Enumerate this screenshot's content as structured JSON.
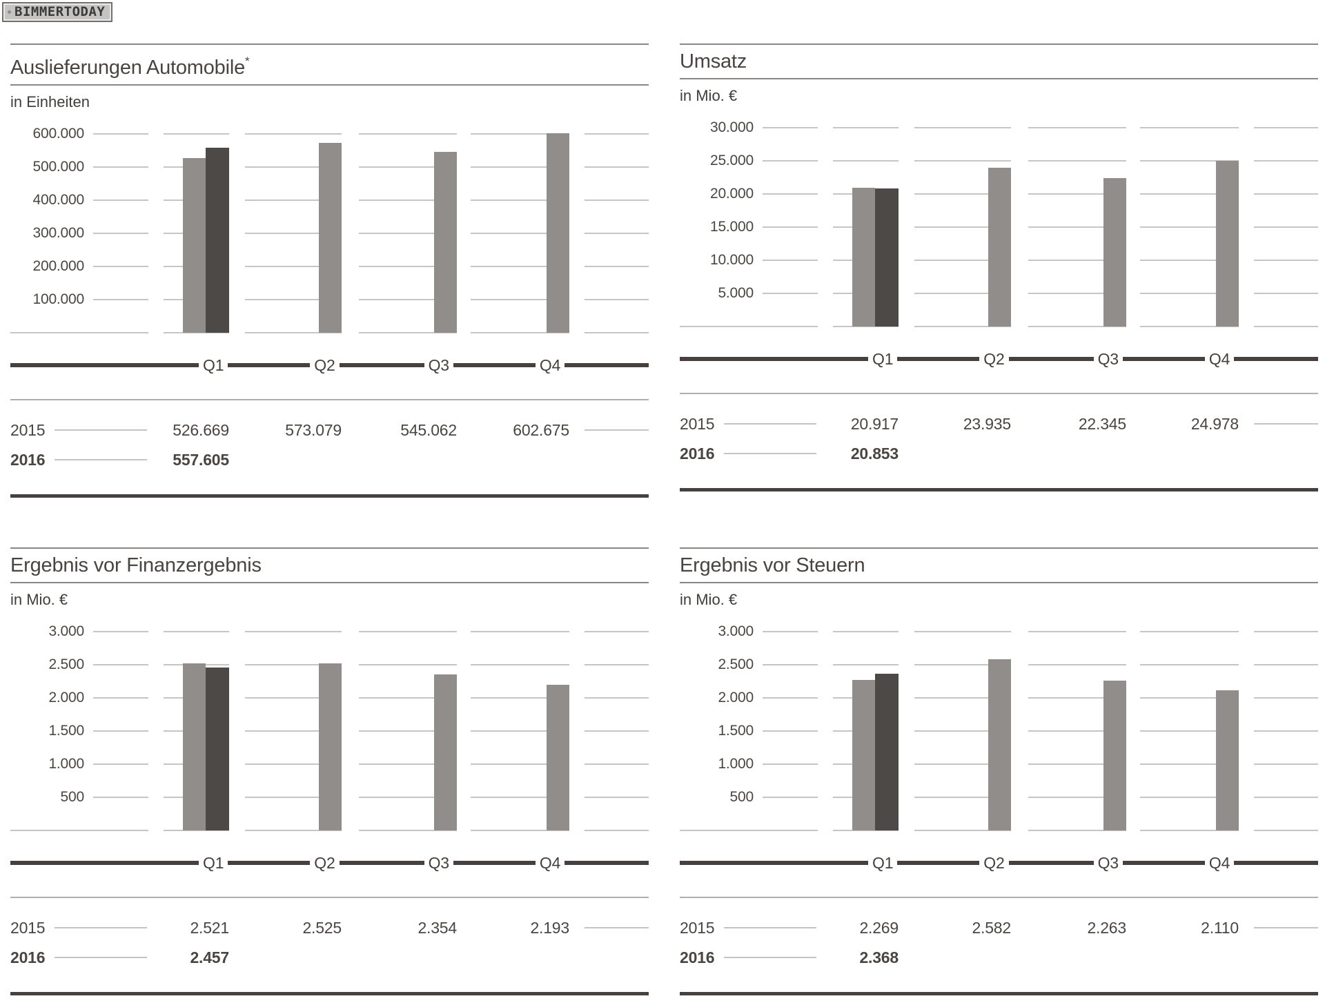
{
  "logo": {
    "text": "BIMMERTODAY"
  },
  "colors": {
    "bar_2015": "#908d8a",
    "bar_2016": "#4d4946",
    "gridline": "#c7c5c3",
    "title_rule": "#8a8683",
    "separator": "#b1aeab",
    "axis_line": "#46413e",
    "table_line": "#c6c4c2",
    "text": "#4a4541"
  },
  "chart_data": [
    {
      "type": "bar",
      "title": "Auslieferungen Automobile",
      "title_note": "*",
      "unit_label": "in Einheiten",
      "categories": [
        "Q1",
        "Q2",
        "Q3",
        "Q4"
      ],
      "ylim": [
        0,
        600000
      ],
      "y_tick_labels": [
        "600.000",
        "500.000",
        "400.000",
        "300.000",
        "200.000",
        "100.000"
      ],
      "grid": true,
      "series": [
        {
          "name": "2015",
          "color": "#908d8a",
          "values": [
            526669,
            573079,
            545062,
            602675
          ],
          "value_labels": [
            "526.669",
            "573.079",
            "545.062",
            "602.675"
          ]
        },
        {
          "name": "2016",
          "color": "#4d4946",
          "values": [
            557605
          ],
          "value_labels": [
            "557.605"
          ]
        }
      ]
    },
    {
      "type": "bar",
      "title": "Umsatz",
      "title_note": "",
      "unit_label": "in Mio. €",
      "categories": [
        "Q1",
        "Q2",
        "Q3",
        "Q4"
      ],
      "ylim": [
        0,
        30000
      ],
      "y_tick_labels": [
        "30.000",
        "25.000",
        "20.000",
        "15.000",
        "10.000",
        "5.000"
      ],
      "grid": true,
      "series": [
        {
          "name": "2015",
          "color": "#908d8a",
          "values": [
            20917,
            23935,
            22345,
            24978
          ],
          "value_labels": [
            "20.917",
            "23.935",
            "22.345",
            "24.978"
          ]
        },
        {
          "name": "2016",
          "color": "#4d4946",
          "values": [
            20853
          ],
          "value_labels": [
            "20.853"
          ]
        }
      ]
    },
    {
      "type": "bar",
      "title": "Ergebnis vor Finanzergebnis",
      "title_note": "",
      "unit_label": "in Mio. €",
      "categories": [
        "Q1",
        "Q2",
        "Q3",
        "Q4"
      ],
      "ylim": [
        0,
        3000
      ],
      "y_tick_labels": [
        "3.000",
        "2.500",
        "2.000",
        "1.500",
        "1.000",
        "500"
      ],
      "grid": true,
      "series": [
        {
          "name": "2015",
          "color": "#908d8a",
          "values": [
            2521,
            2525,
            2354,
            2193
          ],
          "value_labels": [
            "2.521",
            "2.525",
            "2.354",
            "2.193"
          ]
        },
        {
          "name": "2016",
          "color": "#4d4946",
          "values": [
            2457
          ],
          "value_labels": [
            "2.457"
          ]
        }
      ]
    },
    {
      "type": "bar",
      "title": "Ergebnis vor Steuern",
      "title_note": "",
      "unit_label": "in Mio. €",
      "categories": [
        "Q1",
        "Q2",
        "Q3",
        "Q4"
      ],
      "ylim": [
        0,
        3000
      ],
      "y_tick_labels": [
        "3.000",
        "2.500",
        "2.000",
        "1.500",
        "1.000",
        "500"
      ],
      "grid": true,
      "series": [
        {
          "name": "2015",
          "color": "#908d8a",
          "values": [
            2269,
            2582,
            2263,
            2110
          ],
          "value_labels": [
            "2.269",
            "2.582",
            "2.263",
            "2.110"
          ]
        },
        {
          "name": "2016",
          "color": "#4d4946",
          "values": [
            2368
          ],
          "value_labels": [
            "2.368"
          ]
        }
      ]
    }
  ]
}
